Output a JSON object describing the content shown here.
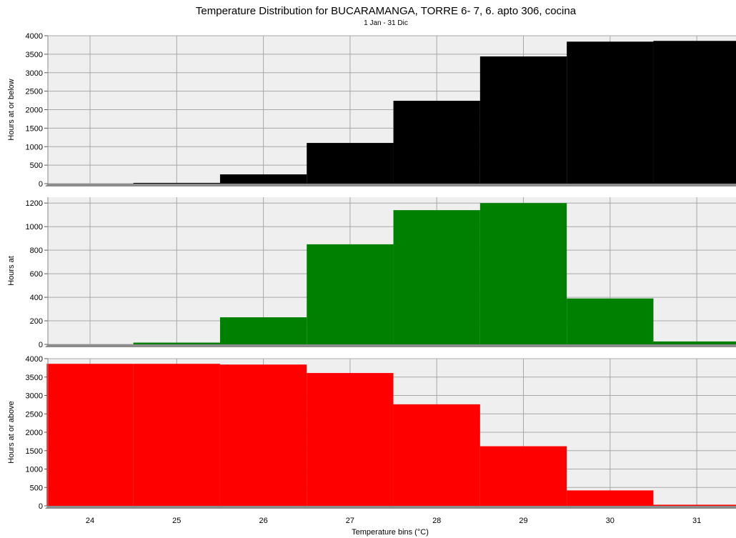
{
  "chart_data": {
    "type": "bar",
    "title": "Temperature Distribution for BUCARAMANGA, TORRE 6- 7, 6. apto 306, cocina",
    "subtitle": "1 Jan - 31 Dic",
    "xlabel": "Temperature bins (°C)",
    "categories": [
      "24",
      "25",
      "26",
      "27",
      "28",
      "29",
      "30",
      "31"
    ],
    "grid": true,
    "panels": [
      {
        "name": "cumulative-below",
        "ylabel": "Hours at or below",
        "color": "#000000",
        "ylim": [
          0,
          4000
        ],
        "yticks": [
          "0",
          "500",
          "1000",
          "1500",
          "2000",
          "2500",
          "3000",
          "3500",
          "4000"
        ],
        "values": [
          0,
          20,
          250,
          1100,
          2240,
          3440,
          3840,
          3860
        ]
      },
      {
        "name": "hours-at",
        "ylabel": "Hours at",
        "color": "#008000",
        "ylim": [
          0,
          1250
        ],
        "yticks": [
          "0",
          "200",
          "400",
          "600",
          "800",
          "1000",
          "1200"
        ],
        "values": [
          0,
          15,
          230,
          850,
          1140,
          1200,
          390,
          25
        ]
      },
      {
        "name": "cumulative-above",
        "ylabel": "Hours at or above",
        "color": "#ff0000",
        "ylim": [
          0,
          4000
        ],
        "yticks": [
          "0",
          "500",
          "1000",
          "1500",
          "2000",
          "2500",
          "3000",
          "3500",
          "4000"
        ],
        "values": [
          3860,
          3860,
          3840,
          3610,
          2760,
          1620,
          420,
          30
        ]
      }
    ]
  }
}
